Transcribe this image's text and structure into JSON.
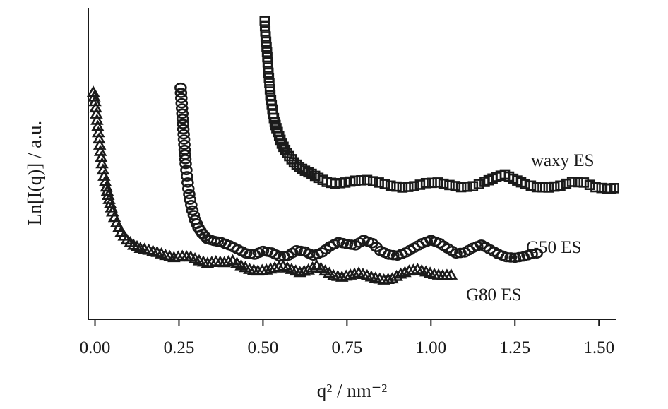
{
  "chart_data": {
    "type": "scatter",
    "xlabel": "q² / nm⁻²",
    "ylabel": "Ln[I(q)] / a.u.",
    "xlim": [
      -0.02,
      1.55
    ],
    "ylim": [
      0,
      10
    ],
    "x_ticks": [
      "0.00",
      "0.25",
      "0.50",
      "0.75",
      "1.00",
      "1.25",
      "1.50"
    ],
    "y_ticks_shown": false,
    "grid": false,
    "legend": "none (series labelled directly on plot)",
    "series": [
      {
        "name": "waxy ES",
        "marker": "square",
        "x": [
          0.505,
          0.508,
          0.512,
          0.515,
          0.519,
          0.522,
          0.526,
          0.53,
          0.535,
          0.54,
          0.548,
          0.556,
          0.566,
          0.578,
          0.592,
          0.608,
          0.625,
          0.645,
          0.665,
          0.69,
          0.715,
          0.745,
          0.775,
          0.81,
          0.845,
          0.88,
          0.915,
          0.95,
          0.985,
          1.02,
          1.055,
          1.09,
          1.125,
          1.16,
          1.195,
          1.22,
          1.245,
          1.28,
          1.315,
          1.35,
          1.385,
          1.42,
          1.455,
          1.49,
          1.525,
          1.545
        ],
        "y": [
          9.6,
          9.1,
          8.6,
          8.1,
          7.6,
          7.2,
          6.9,
          6.6,
          6.35,
          6.15,
          5.9,
          5.65,
          5.45,
          5.25,
          5.05,
          4.9,
          4.78,
          4.68,
          4.55,
          4.42,
          4.36,
          4.4,
          4.46,
          4.48,
          4.4,
          4.3,
          4.24,
          4.28,
          4.38,
          4.4,
          4.32,
          4.25,
          4.28,
          4.42,
          4.58,
          4.66,
          4.52,
          4.35,
          4.25,
          4.24,
          4.3,
          4.42,
          4.4,
          4.25,
          4.2,
          4.22
        ]
      },
      {
        "name": "G50 ES",
        "marker": "circle",
        "x": [
          0.255,
          0.258,
          0.261,
          0.264,
          0.267,
          0.27,
          0.274,
          0.278,
          0.283,
          0.29,
          0.298,
          0.308,
          0.32,
          0.335,
          0.355,
          0.375,
          0.4,
          0.425,
          0.45,
          0.475,
          0.5,
          0.525,
          0.55,
          0.575,
          0.6,
          0.625,
          0.65,
          0.675,
          0.7,
          0.725,
          0.75,
          0.775,
          0.8,
          0.825,
          0.85,
          0.875,
          0.9,
          0.925,
          0.95,
          0.975,
          1.0,
          1.025,
          1.05,
          1.075,
          1.1,
          1.125,
          1.15,
          1.175,
          1.2,
          1.225,
          1.25,
          1.275,
          1.3,
          1.315
        ],
        "y": [
          7.45,
          6.95,
          6.45,
          5.95,
          5.45,
          5.0,
          4.6,
          4.2,
          3.85,
          3.5,
          3.2,
          2.95,
          2.75,
          2.58,
          2.52,
          2.48,
          2.38,
          2.25,
          2.12,
          2.08,
          2.2,
          2.15,
          2.02,
          2.05,
          2.22,
          2.18,
          2.05,
          2.15,
          2.35,
          2.48,
          2.42,
          2.38,
          2.55,
          2.45,
          2.2,
          2.08,
          2.05,
          2.15,
          2.3,
          2.45,
          2.55,
          2.45,
          2.28,
          2.12,
          2.15,
          2.3,
          2.4,
          2.25,
          2.1,
          2.0,
          1.98,
          2.02,
          2.1,
          2.12
        ]
      },
      {
        "name": "G80 ES",
        "marker": "triangle",
        "x": [
          -0.005,
          0.0,
          0.004,
          0.008,
          0.012,
          0.016,
          0.021,
          0.027,
          0.034,
          0.042,
          0.052,
          0.064,
          0.078,
          0.095,
          0.115,
          0.135,
          0.16,
          0.185,
          0.21,
          0.235,
          0.26,
          0.285,
          0.31,
          0.335,
          0.36,
          0.385,
          0.41,
          0.435,
          0.46,
          0.485,
          0.51,
          0.535,
          0.56,
          0.585,
          0.61,
          0.635,
          0.66,
          0.685,
          0.71,
          0.735,
          0.76,
          0.785,
          0.81,
          0.835,
          0.86,
          0.885,
          0.91,
          0.935,
          0.96,
          0.985,
          1.01,
          1.035,
          1.06
        ],
        "y": [
          7.3,
          7.0,
          6.6,
          6.2,
          5.8,
          5.4,
          5.0,
          4.6,
          4.25,
          3.85,
          3.45,
          3.1,
          2.8,
          2.55,
          2.38,
          2.28,
          2.22,
          2.15,
          2.05,
          1.98,
          2.02,
          2.0,
          1.88,
          1.8,
          1.85,
          1.82,
          1.88,
          1.72,
          1.6,
          1.55,
          1.58,
          1.65,
          1.7,
          1.6,
          1.5,
          1.58,
          1.72,
          1.55,
          1.4,
          1.35,
          1.42,
          1.48,
          1.4,
          1.32,
          1.26,
          1.3,
          1.45,
          1.55,
          1.6,
          1.52,
          1.44,
          1.4,
          1.42
        ]
      }
    ]
  }
}
